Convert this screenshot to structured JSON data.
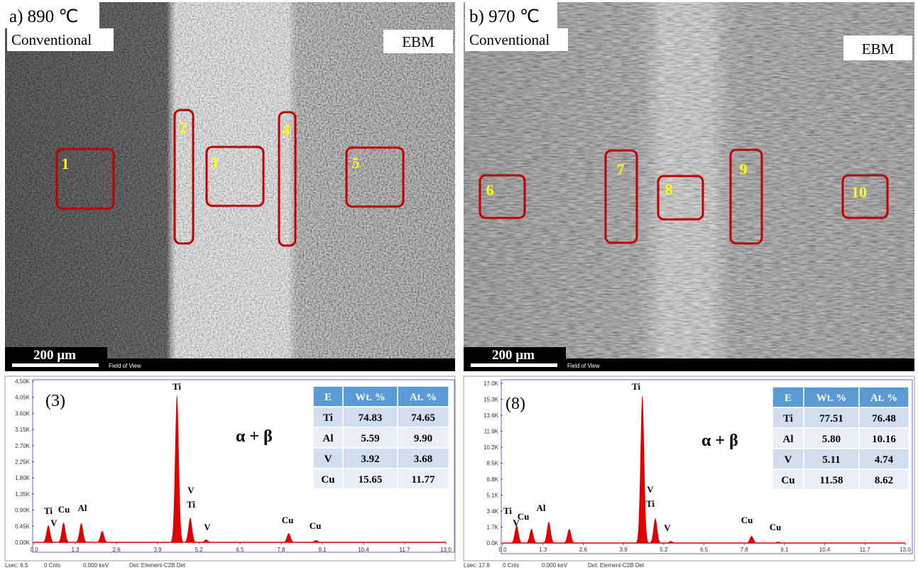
{
  "panels": [
    {
      "title": "a) 890 ℃",
      "left_label": "Conventional",
      "right_label": "EBM",
      "regions": [
        "1",
        "2",
        "3",
        "4",
        "5"
      ],
      "scale_bar": "200 µm",
      "field": "Field of View",
      "spectrum": {
        "type": "spectrum",
        "sample": "(3)",
        "phase": "α + β",
        "xlim": [
          0,
          13
        ],
        "xticks": [
          {
            "value": 0,
            "label": "0.0"
          },
          1.3,
          2.6,
          3.9,
          5.2,
          6.5,
          7.8,
          9.1,
          10.4,
          11.7,
          {
            "value": 13,
            "label": "13.0"
          }
        ],
        "ylim": [
          0,
          4500
        ],
        "yticks": [
          {
            "value": 0,
            "label": "0.00K"
          },
          {
            "value": 450,
            "label": "0.45K"
          },
          {
            "value": 900,
            "label": "0.90K"
          },
          {
            "value": 1350,
            "label": "1.35K"
          },
          {
            "value": 1800,
            "label": "1.80K"
          },
          {
            "value": 2250,
            "label": "2.25K"
          },
          {
            "value": 2700,
            "label": "2.70K"
          },
          {
            "value": 3150,
            "label": "3.15K"
          },
          {
            "value": 3600,
            "label": "3.60K"
          },
          {
            "value": 4050,
            "label": "4.05K"
          },
          {
            "value": 4500,
            "label": "4.50K"
          }
        ],
        "x": [
          0.45,
          0.93,
          1.49,
          2.15,
          4.51,
          4.93,
          5.43,
          8.04,
          8.9
        ],
        "values": [
          475,
          555,
          535,
          320,
          4143,
          694,
          80,
          258,
          60
        ],
        "peak_labels": [
          "Ti",
          "V",
          "Cu",
          "Al",
          "Ti",
          "V",
          "Ti",
          "V",
          "Cu",
          "Cu"
        ],
        "table": {
          "header": [
            "E",
            "Wt. %",
            "At. %"
          ],
          "rows": [
            [
              "Ti",
              "74.83",
              "74.65"
            ],
            [
              "Al",
              "5.59",
              "9.90"
            ],
            [
              "V",
              "3.92",
              "3.68"
            ],
            [
              "Cu",
              "15.65",
              "11.77"
            ]
          ]
        },
        "footer": [
          "Lsec: 6.5",
          "0 Cnts",
          "0.000 keV",
          "Det: Element-C2B Det"
        ]
      }
    },
    {
      "title": "b) 970 ℃",
      "left_label": "Conventional",
      "right_label": "EBM",
      "regions": [
        "6",
        "7",
        "8",
        "9",
        "10"
      ],
      "scale_bar": "200 µm",
      "field": "Field of View",
      "spectrum": {
        "type": "spectrum",
        "sample": "(8)",
        "phase": "α + β",
        "xlim": [
          0,
          13
        ],
        "xticks": [
          {
            "value": 0,
            "label": "0.0"
          },
          1.3,
          2.6,
          3.9,
          5.2,
          6.5,
          7.8,
          9.1,
          10.4,
          11.7,
          {
            "value": 13,
            "label": "13.0"
          }
        ],
        "ylim": [
          0,
          17000
        ],
        "yticks": [
          {
            "value": 0,
            "label": "0.0K"
          },
          {
            "value": 1700,
            "label": "1.7K"
          },
          {
            "value": 3400,
            "label": "3.4K"
          },
          {
            "value": 5100,
            "label": "5.1K"
          },
          {
            "value": 6800,
            "label": "6.8K"
          },
          {
            "value": 8500,
            "label": "8.5K"
          },
          {
            "value": 10200,
            "label": "10.2K"
          },
          {
            "value": 11900,
            "label": "11.9K"
          },
          {
            "value": 13600,
            "label": "13.6K"
          },
          {
            "value": 15300,
            "label": "15.3K"
          },
          {
            "value": 17000,
            "label": "17.0K"
          }
        ],
        "x": [
          0.45,
          0.93,
          1.49,
          2.15,
          4.51,
          4.93,
          5.43,
          8.04,
          8.9
        ],
        "values": [
          1890,
          1511,
          2267,
          1511,
          15790,
          2644,
          200,
          755,
          150
        ],
        "peak_labels": [
          "Ti",
          "V",
          "Cu",
          "Al",
          "Ti",
          "V",
          "Ti",
          "V",
          "Cu",
          "Cu"
        ],
        "table": {
          "header": [
            "E",
            "Wt. %",
            "At. %"
          ],
          "rows": [
            [
              "Ti",
              "77.51",
              "76.48"
            ],
            [
              "Al",
              "5.80",
              "10.16"
            ],
            [
              "V",
              "5.11",
              "4.74"
            ],
            [
              "Cu",
              "11.58",
              "8.62"
            ]
          ]
        },
        "footer": [
          "Lsec: 17.8",
          "0 Cnts",
          "0.000 keV",
          "Det: Element-C2B Det"
        ]
      }
    }
  ]
}
